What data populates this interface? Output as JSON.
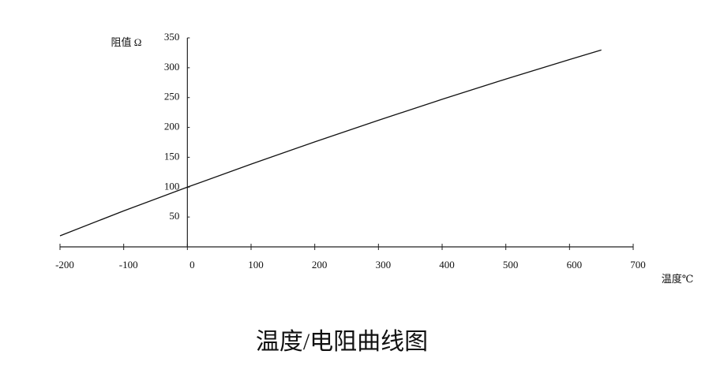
{
  "chart_data": {
    "type": "line",
    "title": "温度/电阻曲线图",
    "x_label": "温度℃",
    "y_label": "阻值 Ω",
    "x": [
      -200,
      -100,
      0,
      100,
      200,
      300,
      400,
      500,
      600,
      650
    ],
    "series": [
      {
        "color": "#111111",
        "values": [
          18.52,
          60.26,
          100,
          138.51,
          175.86,
          212.05,
          247.09,
          280.98,
          313.71,
          329.64
        ]
      }
    ],
    "xlim": [
      -200,
      700
    ],
    "xticks": [
      -200,
      -100,
      0,
      100,
      200,
      300,
      400,
      500,
      600,
      700
    ],
    "ylim": [
      0,
      350
    ],
    "yticks": [
      50,
      100,
      150,
      200,
      250,
      300,
      350
    ]
  }
}
